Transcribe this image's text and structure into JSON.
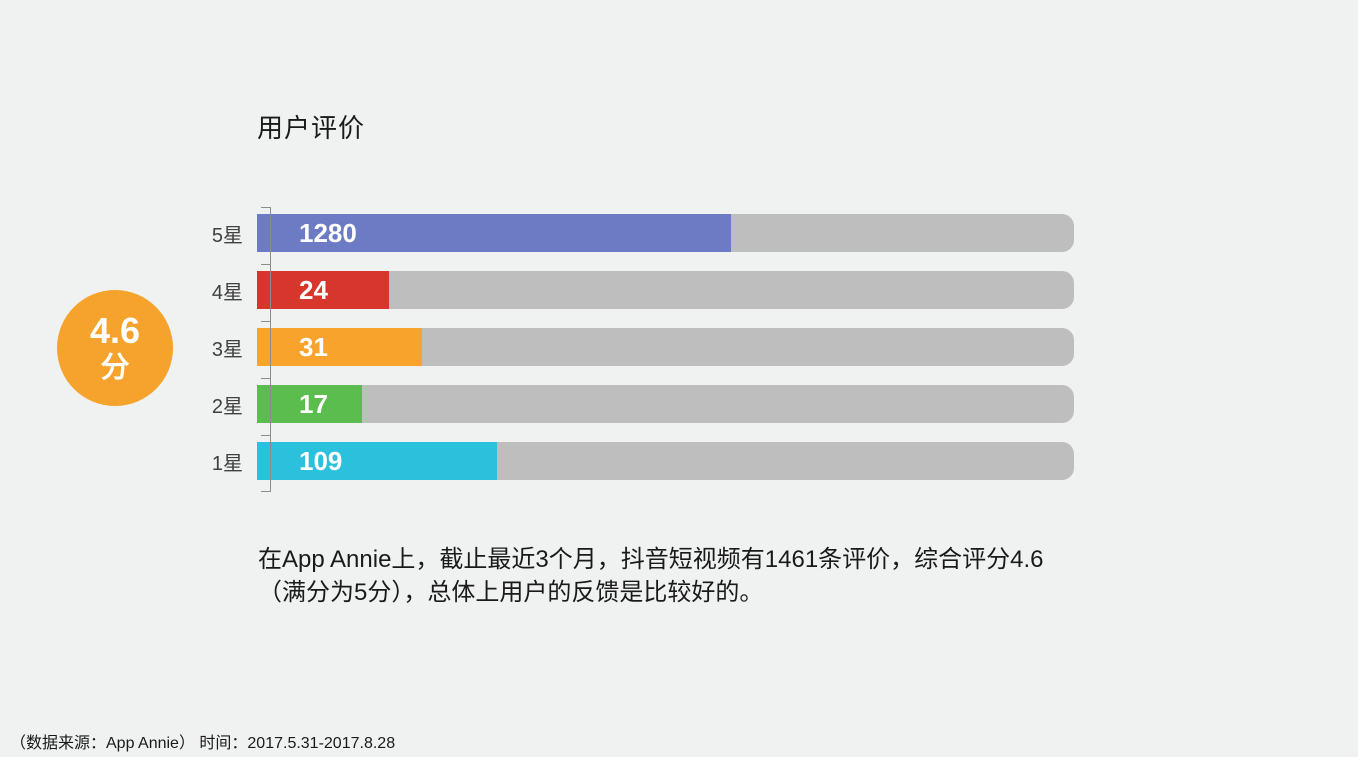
{
  "title": "用户评价",
  "score": {
    "value": "4.6",
    "unit": "分",
    "badge_color": "#F5A32C"
  },
  "chart_data": {
    "type": "bar",
    "orientation": "horizontal",
    "title": "用户评价",
    "categories": [
      "5星",
      "4星",
      "3星",
      "2星",
      "1星"
    ],
    "values": [
      1280,
      24,
      31,
      17,
      109
    ],
    "bar_colors": [
      "#6D7BC4",
      "#D6362B",
      "#F8A32B",
      "#5ABD4D",
      "#2BC0DB"
    ],
    "bar_width_pct": [
      58.0,
      16.2,
      20.2,
      12.9,
      29.4
    ],
    "track_color": "#BEBEBE",
    "value_label_color": "#FFFFFF",
    "axis_color": "#8C8C8C",
    "grid": false,
    "legend": false
  },
  "description": {
    "lines": [
      "在App Annie上，截止最近3个月，抖音短视频有1461条评价，综合评分4.6",
      "（满分为5分），总体上用户的反馈是比较好的。"
    ]
  },
  "footer": {
    "text": "（数据来源：App Annie） 时间：2017.5.31-2017.8.28"
  },
  "colors": {
    "background": "#F0F1F1",
    "text": "#1A1A1A"
  }
}
